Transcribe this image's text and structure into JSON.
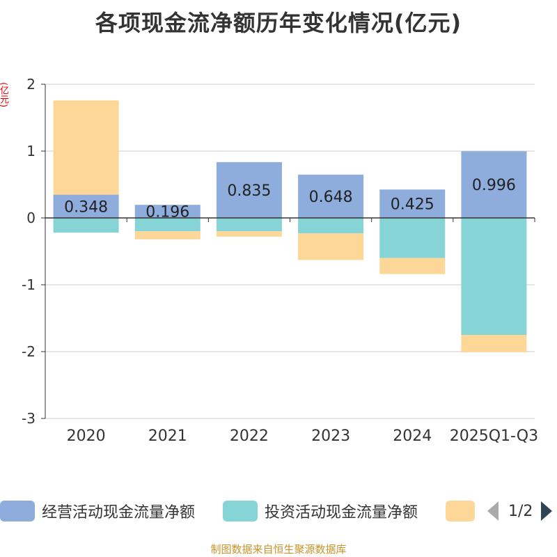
{
  "title": "各项现金流净额历年变化情况(亿元)",
  "unit_label": "(亿元)",
  "source": "制图数据来自恒生聚源数据库",
  "pager": {
    "text": "1/2"
  },
  "colors": {
    "operating": "#8eacdc",
    "investing": "#86d4d6",
    "financing": "#fdd797",
    "axis": "#333333",
    "grid": "#cccccc"
  },
  "chart_data": {
    "type": "bar",
    "stacked": true,
    "title": "各项现金流净额历年变化情况(亿元)",
    "ylabel": "(亿元)",
    "ylim": [
      -3,
      2
    ],
    "yticks": [
      2,
      1,
      0,
      -1,
      -2,
      -3
    ],
    "categories": [
      "2020",
      "2021",
      "2022",
      "2023",
      "2024",
      "2025Q1-Q3"
    ],
    "series": [
      {
        "name": "经营活动现金流量净额",
        "values": [
          0.348,
          0.196,
          0.835,
          0.648,
          0.425,
          0.996
        ],
        "labels": [
          "0.348",
          "0.196",
          "0.835",
          "0.648",
          "0.425",
          "0.996"
        ]
      },
      {
        "name": "投资活动现金流量净额",
        "values": [
          -0.22,
          -0.2,
          -0.2,
          -0.23,
          -0.6,
          -1.75
        ]
      },
      {
        "name": "",
        "values": [
          1.41,
          -0.12,
          -0.08,
          -0.4,
          -0.24,
          -0.26
        ]
      }
    ],
    "legend": [
      "经营活动现金流量净额",
      "投资活动现金流量净额",
      ""
    ]
  }
}
